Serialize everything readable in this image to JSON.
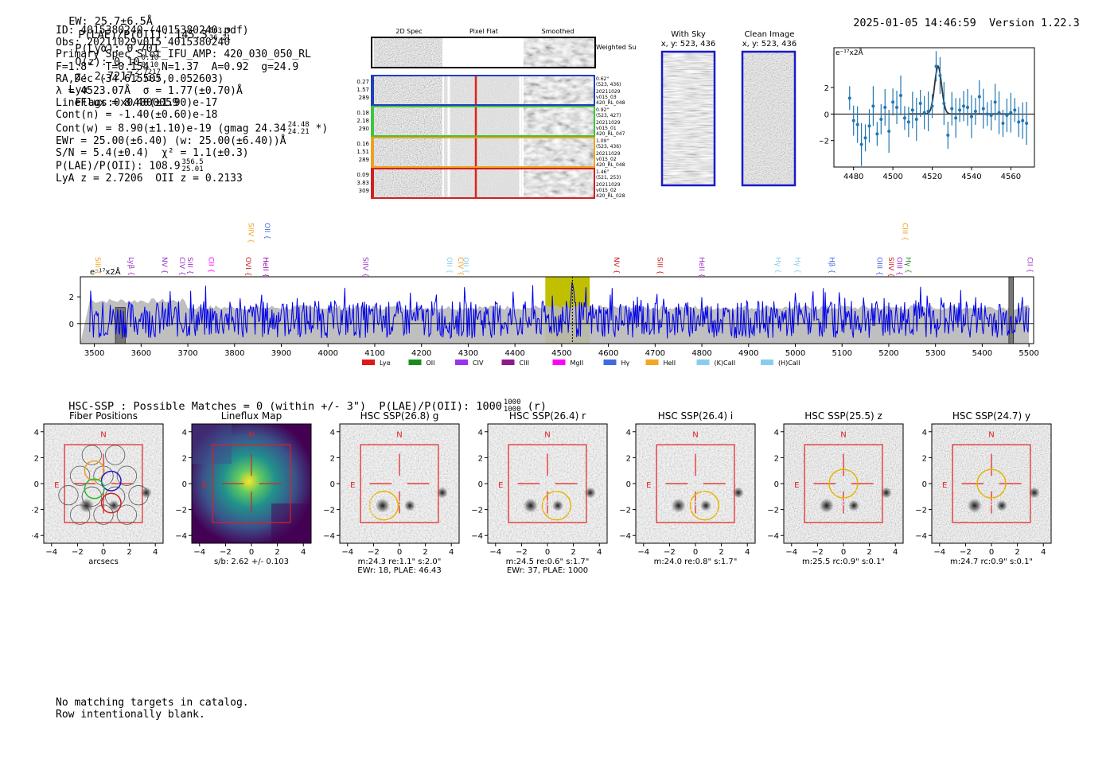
{
  "header": {
    "ew": "EW: 25.7±6.5Å",
    "plae_label": "P(LAE)/P(OII): 145.3",
    "plae_hi": "563.9",
    "plae_lo": "36.21",
    "plya": "P(Lyα): 0.701",
    "qz_label": "Q(z): 0.10",
    "qz_hi": "0.10",
    "qz_lo": "0.10",
    "z_label": "z: 2.7217",
    "z_hi": "2.7217",
    "z_lo": "2.7217",
    "line": "Lyα",
    "flags": "Flags:0x04000059",
    "datetime": "2025-01-05 14:46:59",
    "version": "Version 1.22.3"
  },
  "info": {
    "id": "ID: 4015380240 (4015380240.pdf)",
    "obs": "Obs: 20211029v015_4015380240",
    "slot": "Primary Spec_Slot_IFU_AMP: 420_030_050_RL",
    "fit": "F=1.8\"  T=0.154  N=1.37  A=0.92  g=24.9",
    "radec": "RA,Dec (34.615505,0.052603)",
    "lambda": "λ = 4523.07Å  σ = 1.77(±0.70)Å",
    "lineflux": "LineFlux = 8.40(±1.90)e-17",
    "contn": "Cont(n) = -1.40(±0.60)e-18",
    "contw": "Cont(w) = 8.90(±1.10)e-19 (gmag 24.34",
    "contw_hi": "24.48",
    "contw_lo": "24.21",
    "contw_end": "*)",
    "ewr": "EWr = 25.00(±6.40) (w: 25.00(±6.40))Å",
    "sn": "S/N = 5.4(±0.4)  χ² = 1.1(±0.3)",
    "plae": "P(LAE)/P(OII): 108.9",
    "plae_hi": "356.5",
    "plae_lo": "25.01",
    "z": "LyA z = 2.7206  OII z = 0.2133"
  },
  "cutout_panel": {
    "col_2d": "2D Spec",
    "col_flat": "Pixel Flat",
    "col_smooth": "Smoothed",
    "weighted_sum": "Weighted Sum",
    "rows": [
      {
        "w": "0.27",
        "a": "1.57",
        "n": "289",
        "color": "#1f3fbf",
        "dist": "0.62\"",
        "xy": "(523, 436)",
        "date": "20211029",
        "shot": "v015_03",
        "amp": "420_RL_048"
      },
      {
        "w": "0.18",
        "a": "2.18",
        "n": "290",
        "color": "#3fc43f",
        "dist": "0.92\"",
        "xy": "(523, 427)",
        "date": "20211029",
        "shot": "v015_01",
        "amp": "420_RL_047"
      },
      {
        "w": "0.16",
        "a": "1.51",
        "n": "289",
        "color": "#f0a020",
        "dist": "1.09\"",
        "xy": "(523, 436)",
        "date": "20211029",
        "shot": "v015_02",
        "amp": "420_RL_048"
      },
      {
        "w": "0.09",
        "a": "3.83",
        "n": "309",
        "color": "#d02020",
        "dist": "1.46\"",
        "xy": "(521, 253)",
        "date": "20211029",
        "shot": "v015_02",
        "amp": "420_RL_028"
      }
    ]
  },
  "sky": {
    "with_sky_title": "With Sky",
    "with_sky_xy": "x, y: 523, 436",
    "clean_title": "Clean Image",
    "clean_xy": "x, y: 523, 436"
  },
  "zoom_chart": {
    "type": "scatter",
    "unit_label": "e⁻¹⁷x2Å",
    "x": [
      4478,
      4480,
      4482,
      4484,
      4486,
      4488,
      4490,
      4492,
      4494,
      4496,
      4498,
      4500,
      4502,
      4504,
      4506,
      4508,
      4510,
      4512,
      4514,
      4516,
      4518,
      4520,
      4522,
      4524,
      4526,
      4528,
      4530,
      4532,
      4534,
      4536,
      4538,
      4540,
      4542,
      4544,
      4546,
      4548,
      4550,
      4552,
      4554,
      4556,
      4558,
      4560,
      4562,
      4564,
      4566,
      4568
    ],
    "y": [
      1.2,
      -0.5,
      -0.8,
      -2.3,
      -1.8,
      -0.9,
      0.6,
      -1.5,
      -0.4,
      0.5,
      -1.3,
      0.9,
      0.5,
      1.4,
      -0.3,
      -0.6,
      0.3,
      -0.4,
      0.8,
      0.1,
      0.2,
      0.6,
      3.6,
      2.9,
      0.8,
      -1.6,
      0.4,
      -0.3,
      0.3,
      0.6,
      0.5,
      -0.2,
      0.2,
      1.3,
      0.4,
      0.0,
      -0.1,
      0.9,
      0.1,
      -0.7,
      -0.1,
      0.1,
      0.3,
      -0.6,
      -0.5,
      -0.7
    ],
    "fit_peak": 3.6,
    "fit_center": 4523,
    "fit_sigma": 1.77,
    "xlim": [
      4470,
      4572
    ],
    "ylim": [
      -4,
      5
    ],
    "xticks": [
      "4480",
      "4500",
      "4520",
      "4540",
      "4560"
    ],
    "yticks": [
      "2",
      "0",
      "−2"
    ]
  },
  "spectrum": {
    "type": "line",
    "unit_label": "e⁻¹⁷x2Å",
    "xlim": [
      3470,
      5510
    ],
    "ylim": [
      -1.5,
      3.5
    ],
    "xticks": [
      "3500",
      "3600",
      "3700",
      "3800",
      "3900",
      "4000",
      "4100",
      "4200",
      "4300",
      "4400",
      "4500",
      "4600",
      "4700",
      "4800",
      "4900",
      "5000",
      "5100",
      "5200",
      "5300",
      "5400",
      "5500"
    ],
    "yticks": [
      "2",
      "0"
    ],
    "highlight": [
      4465,
      4560
    ],
    "peak_x": 4523,
    "lines_top": [
      {
        "name": "SIII",
        "x": 3502,
        "color": "#f0a020"
      },
      {
        "name": "Lyβ",
        "x": 3574,
        "color": "#9933cc"
      },
      {
        "name": "NV",
        "x": 3645,
        "color": "#9933cc"
      },
      {
        "name": "CIV",
        "x": 3683,
        "color": "#9933cc"
      },
      {
        "name": "SiII",
        "x": 3700,
        "color": "#9933cc"
      },
      {
        "name": "CII",
        "x": 3745,
        "color": "#ff00ff"
      },
      {
        "name": "OVI",
        "x": 3824,
        "color": "#d02020"
      },
      {
        "name": "HeII",
        "x": 3862,
        "color": "#9900aa"
      },
      {
        "name": "SIIV",
        "x": 4075,
        "color": "#9933cc"
      },
      {
        "name": "OII",
        "x": 4255,
        "color": "#88ccee"
      },
      {
        "name": "CIV",
        "x": 4279,
        "color": "#f0a020"
      },
      {
        "name": "OII",
        "x": 4290,
        "color": "#88ccee"
      },
      {
        "name": "NV",
        "x": 4613,
        "color": "#d02020"
      },
      {
        "name": "SIII",
        "x": 4705,
        "color": "#d02020"
      },
      {
        "name": "HeII",
        "x": 4795,
        "color": "#9933cc"
      },
      {
        "name": "Hγ",
        "x": 4958,
        "color": "#88ccee"
      },
      {
        "name": "Hγ",
        "x": 5000,
        "color": "#88ccee"
      },
      {
        "name": "Hβ",
        "x": 5073,
        "color": "#4169e1"
      },
      {
        "name": "OIII",
        "x": 5175,
        "color": "#4169e1"
      },
      {
        "name": "SIIV",
        "x": 5200,
        "color": "#d02020"
      },
      {
        "name": "OIII",
        "x": 5218,
        "color": "#9933cc"
      },
      {
        "name": "Hγ",
        "x": 5237,
        "color": "#2a8c2a"
      },
      {
        "name": "CII",
        "x": 5497,
        "color": "#9933cc"
      }
    ],
    "lines_high": [
      {
        "name": "SIIV",
        "x": 3830,
        "color": "#f0a020"
      },
      {
        "name": "OII",
        "x": 3865,
        "color": "#4169e1"
      },
      {
        "name": "CIII",
        "x": 5230,
        "color": "#f0a020"
      }
    ],
    "legend": [
      {
        "name": "Lyα",
        "color": "#e01818"
      },
      {
        "name": "OII",
        "color": "#1a8c1a"
      },
      {
        "name": "CIV",
        "color": "#9933ee"
      },
      {
        "name": "CIII",
        "color": "#8b1a8b"
      },
      {
        "name": "MgII",
        "color": "#ff00ff"
      },
      {
        "name": "Hγ",
        "color": "#4169e1"
      },
      {
        "name": "HeII",
        "color": "#f5a623"
      },
      {
        "name": "(K)CaII",
        "color": "#87ceeb"
      },
      {
        "name": "(H)CaII",
        "color": "#87ceeb"
      }
    ]
  },
  "hsc": {
    "summary": "HSC-SSP : Possible Matches = 0 (within +/- 3\")  P(LAE)/P(OII): 1000",
    "summary_hi": "1000",
    "summary_lo": "1000",
    "summary_end": "(r)",
    "xticks": [
      "−4",
      "−2",
      "0",
      "2",
      "4"
    ],
    "yticks": [
      "4",
      "2",
      "0",
      "−2",
      "−4"
    ],
    "north": "N",
    "east": "E",
    "panels": [
      {
        "title": "Fiber Positions",
        "cap1": "arcsecs",
        "cap2": ""
      },
      {
        "title": "Lineflux Map",
        "cap1": "s/b: 2.62 +/- 0.103",
        "cap2": ""
      },
      {
        "title": "HSC SSP(26.8) g",
        "cap1": "m:24.3  re:1.1\"  s:2.0\"",
        "cap2": "EWr: 18, PLAE: 46.43"
      },
      {
        "title": "HSC SSP(26.4) r",
        "cap1": "m:24.5  re:0.6\"  s:1.7\"",
        "cap2": "EWr: 37, PLAE: 1000"
      },
      {
        "title": "HSC SSP(26.4) i",
        "cap1": "m:24.0  re:0.8\"  s:1.7\"",
        "cap2": ""
      },
      {
        "title": "HSC SSP(25.5) z",
        "cap1": "m:25.5 rc:0.9\"  s:0.1\"",
        "cap2": ""
      },
      {
        "title": "HSC SSP(24.7) y",
        "cap1": "m:24.7 rc:0.9\"  s:0.1\"",
        "cap2": ""
      }
    ]
  },
  "footer": {
    "line1": "No matching targets in catalog.",
    "line2": "Row intentionally blank."
  },
  "colors": {
    "spectrum": "#0000ee",
    "noise": "#b8b8b8",
    "highlight": "#c0c000",
    "fit": "#333333",
    "points": "#1f77b4"
  }
}
